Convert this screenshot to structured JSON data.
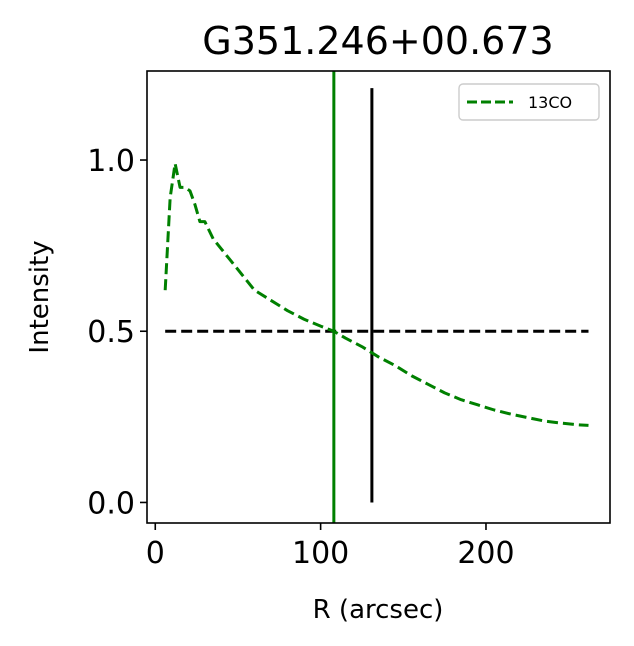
{
  "chart_data": {
    "type": "line",
    "title": "G351.246+00.673",
    "xlabel": "R (arcsec)",
    "ylabel": "Intensity",
    "xlim": [
      -5,
      275
    ],
    "ylim": [
      -0.06,
      1.26
    ],
    "xticks": [
      0,
      100,
      200
    ],
    "xtick_labels": [
      "0",
      "100",
      "200"
    ],
    "yticks": [
      0.0,
      0.5,
      1.0
    ],
    "ytick_labels": [
      "0.0",
      "0.5",
      "1.0"
    ],
    "grid": false,
    "legend": {
      "placement": "top-right",
      "entries": [
        "13CO"
      ]
    },
    "series": [
      {
        "name": "13CO",
        "color": "#008000",
        "style": "dashed",
        "x": [
          6,
          9,
          12,
          15,
          18,
          21,
          24,
          27,
          30,
          35,
          40,
          45,
          50,
          55,
          60,
          70,
          80,
          90,
          100,
          108,
          115,
          125,
          135,
          145,
          155,
          165,
          175,
          185,
          195,
          205,
          215,
          225,
          235,
          245,
          255,
          262
        ],
        "y": [
          0.62,
          0.89,
          0.99,
          0.92,
          0.92,
          0.91,
          0.87,
          0.82,
          0.82,
          0.77,
          0.74,
          0.71,
          0.68,
          0.65,
          0.62,
          0.59,
          0.56,
          0.535,
          0.515,
          0.5,
          0.48,
          0.455,
          0.425,
          0.4,
          0.37,
          0.345,
          0.32,
          0.3,
          0.285,
          0.27,
          0.258,
          0.248,
          0.238,
          0.232,
          0.227,
          0.225
        ]
      }
    ],
    "reference_lines": [
      {
        "kind": "horizontal",
        "y": 0.5,
        "x_from": 6,
        "x_to": 262,
        "color": "#000000",
        "style": "dashed"
      },
      {
        "kind": "vertical",
        "x": 108,
        "color": "#008000",
        "style": "solid",
        "full_height": true
      },
      {
        "kind": "vertical",
        "x": 131,
        "y_from": 0.0,
        "y_to": 1.21,
        "color": "#000000",
        "style": "solid"
      }
    ]
  }
}
